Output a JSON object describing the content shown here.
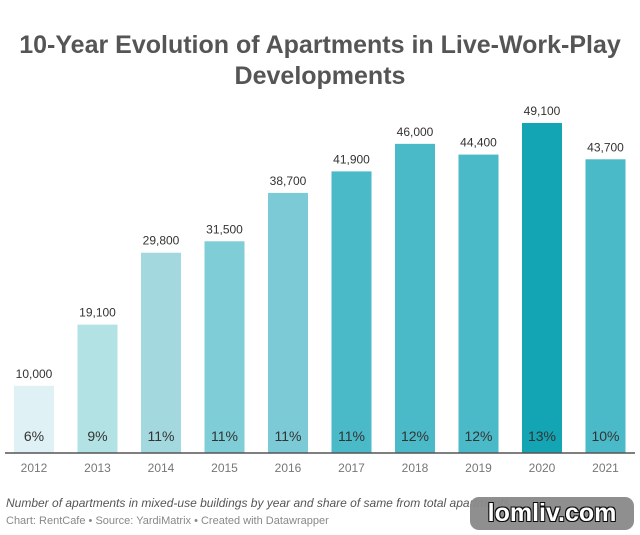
{
  "chart_data": {
    "type": "bar",
    "title": "10-Year Evolution of Apartments in Live-Work-Play Developments",
    "categories": [
      "2012",
      "2013",
      "2014",
      "2015",
      "2016",
      "2017",
      "2018",
      "2019",
      "2020",
      "2021"
    ],
    "values": [
      10000,
      19100,
      29800,
      31500,
      38700,
      41900,
      46000,
      44400,
      49100,
      43700
    ],
    "value_labels": [
      "10,000",
      "19,100",
      "29,800",
      "31,500",
      "38,700",
      "41,900",
      "46,000",
      "44,400",
      "49,100",
      "43,700"
    ],
    "share_labels": [
      "6%",
      "9%",
      "11%",
      "11%",
      "11%",
      "11%",
      "12%",
      "12%",
      "13%",
      "10%"
    ],
    "colors": [
      "#dff1f4",
      "#b3e2e5",
      "#a4d8df",
      "#7fcdd6",
      "#7bcad6",
      "#4bbac8",
      "#4bbac8",
      "#4bbac8",
      "#13a5b4",
      "#4bbac8"
    ],
    "ylim": [
      0,
      49100
    ],
    "grid": false,
    "description": "Number of apartments in mixed-use buildings by year and share of same from total apartments",
    "source": "Chart: RentCafe • Source: YardiMatrix • Created with Datawrapper"
  },
  "watermark": "lomliv.com"
}
